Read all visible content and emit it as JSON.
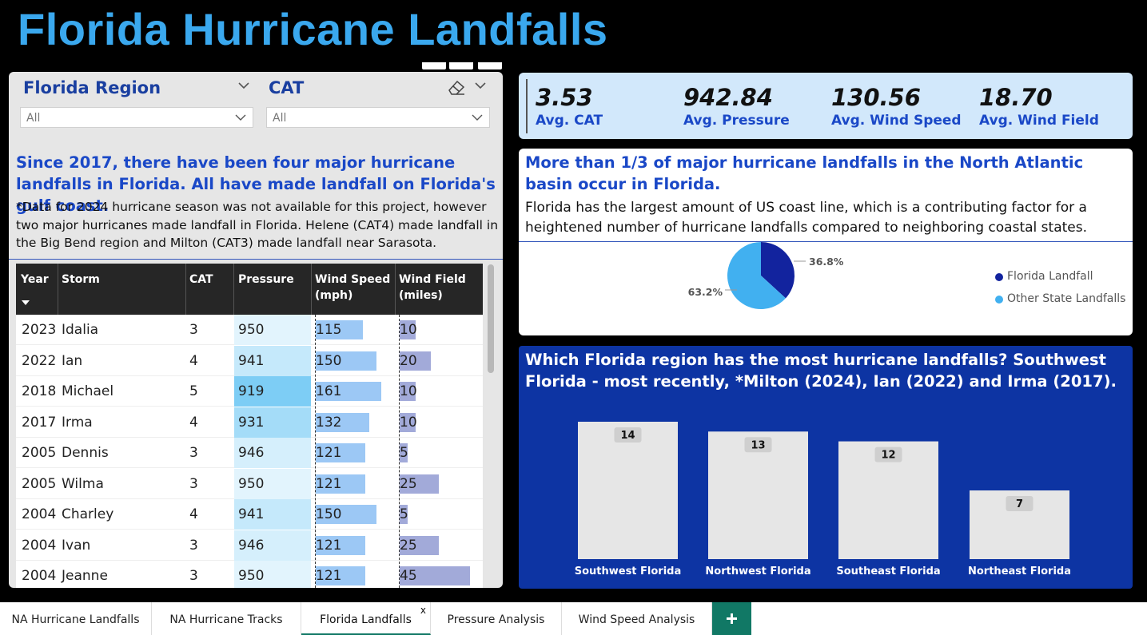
{
  "header": {
    "title": "Florida Hurricane Landfalls"
  },
  "slicers": {
    "region": {
      "label": "Florida Region",
      "value": "All"
    },
    "cat": {
      "label": "CAT",
      "value": "All"
    }
  },
  "left": {
    "headline": "Since 2017, there have been four major hurricane landfalls in Florida. All have made landfall on Florida's gulf coast.",
    "note": "*Data for 2024 hurricane season was not available for this project, however two major hurricanes made landfall in Florida. Helene (CAT4) made landfall in the Big Bend region and Milton (CAT3) made landfall near Sarasota."
  },
  "table": {
    "columns": [
      "Year",
      "Storm",
      "CAT",
      "Pressure",
      "Wind Speed (mph)",
      "Wind Field (miles)"
    ],
    "rows": [
      {
        "year": "2023",
        "storm": "Idalia",
        "cat": "3",
        "pressure": 950,
        "wind_speed": 115,
        "wind_field": 10
      },
      {
        "year": "2022",
        "storm": "Ian",
        "cat": "4",
        "pressure": 941,
        "wind_speed": 150,
        "wind_field": 20
      },
      {
        "year": "2018",
        "storm": "Michael",
        "cat": "5",
        "pressure": 919,
        "wind_speed": 161,
        "wind_field": 10
      },
      {
        "year": "2017",
        "storm": "Irma",
        "cat": "4",
        "pressure": 931,
        "wind_speed": 132,
        "wind_field": 10
      },
      {
        "year": "2005",
        "storm": "Dennis",
        "cat": "3",
        "pressure": 946,
        "wind_speed": 121,
        "wind_field": 5
      },
      {
        "year": "2005",
        "storm": "Wilma",
        "cat": "3",
        "pressure": 950,
        "wind_speed": 121,
        "wind_field": 25
      },
      {
        "year": "2004",
        "storm": "Charley",
        "cat": "4",
        "pressure": 941,
        "wind_speed": 150,
        "wind_field": 5
      },
      {
        "year": "2004",
        "storm": "Ivan",
        "cat": "3",
        "pressure": 946,
        "wind_speed": 121,
        "wind_field": 25
      },
      {
        "year": "2004",
        "storm": "Jeanne",
        "cat": "3",
        "pressure": 950,
        "wind_speed": 121,
        "wind_field": 45
      }
    ]
  },
  "kpis": [
    {
      "value": "3.53",
      "label": "Avg. CAT"
    },
    {
      "value": "942.84",
      "label": "Avg. Pressure"
    },
    {
      "value": "130.56",
      "label": "Avg. Wind Speed"
    },
    {
      "value": "18.70",
      "label": "Avg. Wind Field"
    }
  ],
  "pie_panel": {
    "title": "More than 1/3 of major hurricane landfalls in the North Atlantic basin occur in Florida.",
    "description": "Florida has the largest amount of US coast line, which is a contributing factor for a heightened number of hurricane landfalls compared to neighboring coastal states."
  },
  "bar_panel": {
    "title": "Which Florida region has the most hurricane landfalls? Southwest Florida - most recently, *Milton (2024), Ian (2022) and Irma (2017)."
  },
  "chart_data": [
    {
      "type": "pie",
      "labels": [
        "Florida Landfall",
        "Other State Landfalls"
      ],
      "values": [
        36.8,
        63.2
      ],
      "data_labels": [
        "36.8%",
        "63.2%"
      ],
      "colors": [
        "#12239e",
        "#41b0f0"
      ],
      "legend": "right"
    },
    {
      "type": "bar",
      "categories": [
        "Southwest Florida",
        "Northwest Florida",
        "Southeast Florida",
        "Northeast Florida"
      ],
      "values": [
        14,
        13,
        12,
        7
      ],
      "bar_color": "#e6e6e6",
      "grid": false
    }
  ],
  "colors": {
    "title": "#3aa8ee",
    "accent_blue": "#1a48c7",
    "navy": "#0d34a3",
    "tab_accent": "#117865"
  },
  "tabs": {
    "items": [
      "NA Hurricane Landfalls",
      "NA Hurricane Tracks",
      "Florida Landfalls",
      "Pressure Analysis",
      "Wind Speed Analysis"
    ],
    "active": "Florida Landfalls",
    "close": "x",
    "add": "+"
  }
}
